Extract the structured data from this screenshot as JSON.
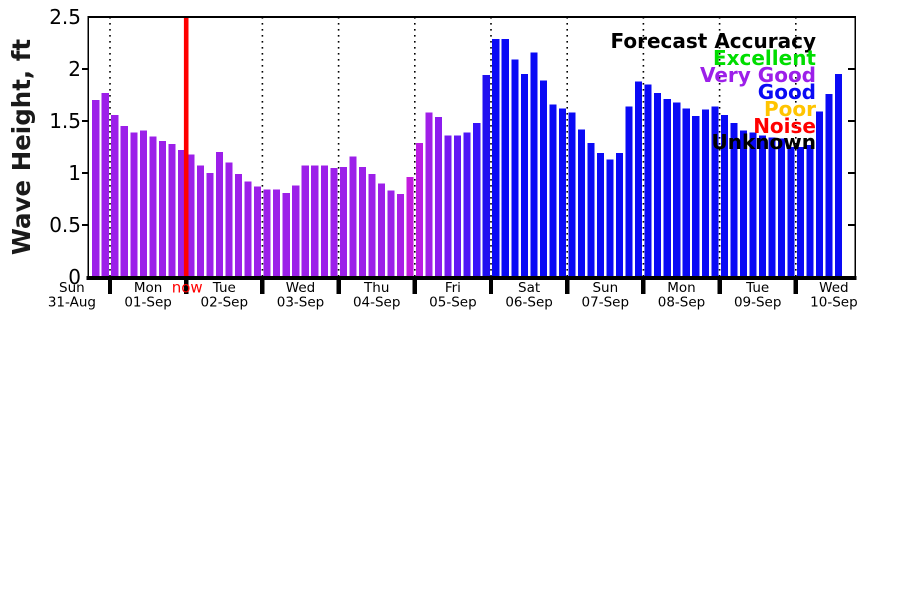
{
  "chart_data": {
    "type": "bar",
    "title": "",
    "ylabel": "Wave Height, ft",
    "ylim": [
      0,
      2.5
    ],
    "ytick_values": [
      0,
      0.5,
      1,
      1.5,
      2,
      2.5
    ],
    "ytick_labels": [
      "0",
      "0.5",
      "1",
      "1.5",
      "2",
      "2.5"
    ],
    "bar_unit": "ft",
    "interval_hours": 3,
    "grid": "dotted vertical lines at day boundaries",
    "legend_position": "top-right inside plot",
    "now_marker": {
      "label": "now",
      "color": "#ff0000",
      "at_day_index": 2
    },
    "legend": {
      "title": "Forecast Accuracy",
      "title_color": "#000000",
      "items": [
        {
          "label": "Excellent",
          "color": "#00dd00"
        },
        {
          "label": "Very Good",
          "color": "#9c1fe9"
        },
        {
          "label": "Good",
          "color": "#0a0af5"
        },
        {
          "label": "Poor",
          "color": "#ffc400"
        },
        {
          "label": "Noise",
          "color": "#ff0000"
        },
        {
          "label": "Unknown",
          "color": "#000000"
        }
      ]
    },
    "accuracy_colors": {
      "very_good": "#9c1fe9",
      "good": "#0a0af5"
    },
    "days": [
      {
        "day": "Sun",
        "date": "31-Aug",
        "slot_offset": 6,
        "values": [
          1.7,
          1.77
        ],
        "colors": [
          "#9c1fe9",
          "#9c1fe9"
        ]
      },
      {
        "day": "Mon",
        "date": "01-Sep",
        "slot_offset": 0,
        "values": [
          1.56,
          1.45,
          1.39,
          1.41,
          1.35,
          1.31,
          1.28,
          1.22
        ],
        "colors": [
          "#9c1fe9",
          "#9c1fe9",
          "#9c1fe9",
          "#9c1fe9",
          "#9c1fe9",
          "#9c1fe9",
          "#9c1fe9",
          "#9c1fe9"
        ]
      },
      {
        "day": "Tue",
        "date": "02-Sep",
        "slot_offset": 0,
        "values": [
          1.18,
          1.07,
          1.0,
          1.2,
          1.1,
          0.99,
          0.92,
          0.87
        ],
        "colors": [
          "#9c1fe9",
          "#9c1fe9",
          "#9c1fe9",
          "#9c1fe9",
          "#9c1fe9",
          "#9c1fe9",
          "#9c1fe9",
          "#9c1fe9"
        ]
      },
      {
        "day": "Wed",
        "date": "03-Sep",
        "slot_offset": 0,
        "values": [
          0.84,
          0.84,
          0.81,
          0.88,
          1.07,
          1.07,
          1.07,
          1.05
        ],
        "colors": [
          "#9c1fe9",
          "#9c1fe9",
          "#9c1fe9",
          "#9c1fe9",
          "#9c1fe9",
          "#9c1fe9",
          "#9c1fe9",
          "#9c1fe9"
        ]
      },
      {
        "day": "Thu",
        "date": "04-Sep",
        "slot_offset": 0,
        "values": [
          1.06,
          1.16,
          1.06,
          0.99,
          0.9,
          0.83,
          0.8,
          0.96
        ],
        "colors": [
          "#9c1fe9",
          "#9c1fe9",
          "#9c1fe9",
          "#9c1fe9",
          "#9c1fe9",
          "#9c1fe9",
          "#a91ee6",
          "#c31bdd"
        ]
      },
      {
        "day": "Fri",
        "date": "05-Sep",
        "slot_offset": 0,
        "values": [
          1.29,
          1.58,
          1.54,
          1.36,
          1.36,
          1.39,
          1.48,
          1.94
        ],
        "colors": [
          "#bc1ce2",
          "#a01fe8",
          "#8c1cee",
          "#7619f1",
          "#6317f4",
          "#4d15f7",
          "#3712fa",
          "#2010f0"
        ]
      },
      {
        "day": "Sat",
        "date": "06-Sep",
        "slot_offset": 0,
        "values": [
          2.29,
          2.29,
          2.09,
          1.95,
          2.16,
          1.89,
          1.66,
          1.62
        ],
        "colors": [
          "#0a0af5",
          "#0a0af5",
          "#0a0af5",
          "#0a0af5",
          "#0a0af5",
          "#0a0af5",
          "#0a0af5",
          "#0a0af5"
        ]
      },
      {
        "day": "Sun",
        "date": "07-Sep",
        "slot_offset": 0,
        "values": [
          1.58,
          1.42,
          1.29,
          1.19,
          1.13,
          1.19,
          1.64,
          1.88
        ],
        "colors": [
          "#0a0af5",
          "#0a0af5",
          "#0a0af5",
          "#0a0af5",
          "#0a0af5",
          "#0a0af5",
          "#0a0af5",
          "#0a0af5"
        ]
      },
      {
        "day": "Mon",
        "date": "08-Sep",
        "slot_offset": 0,
        "values": [
          1.85,
          1.77,
          1.71,
          1.68,
          1.62,
          1.55,
          1.61,
          1.64
        ],
        "colors": [
          "#0a0af5",
          "#0a0af5",
          "#0a0af5",
          "#0a0af5",
          "#0a0af5",
          "#0a0af5",
          "#0a0af5",
          "#0a0af5"
        ]
      },
      {
        "day": "Tue",
        "date": "09-Sep",
        "slot_offset": 0,
        "values": [
          1.56,
          1.48,
          1.41,
          1.39,
          1.36,
          1.34,
          1.33,
          1.25
        ],
        "colors": [
          "#0a0af5",
          "#0a0af5",
          "#0a0af5",
          "#0a0af5",
          "#0a0af5",
          "#0a0af5",
          "#0a0af5",
          "#0a0af5"
        ]
      },
      {
        "day": "Wed",
        "date": "10-Sep",
        "slot_offset": 0,
        "values": [
          1.25,
          1.27,
          1.59,
          1.76,
          1.95
        ],
        "colors": [
          "#0a0af5",
          "#0a0af5",
          "#0a0af5",
          "#0a0af5",
          "#0a0af5"
        ]
      }
    ]
  }
}
